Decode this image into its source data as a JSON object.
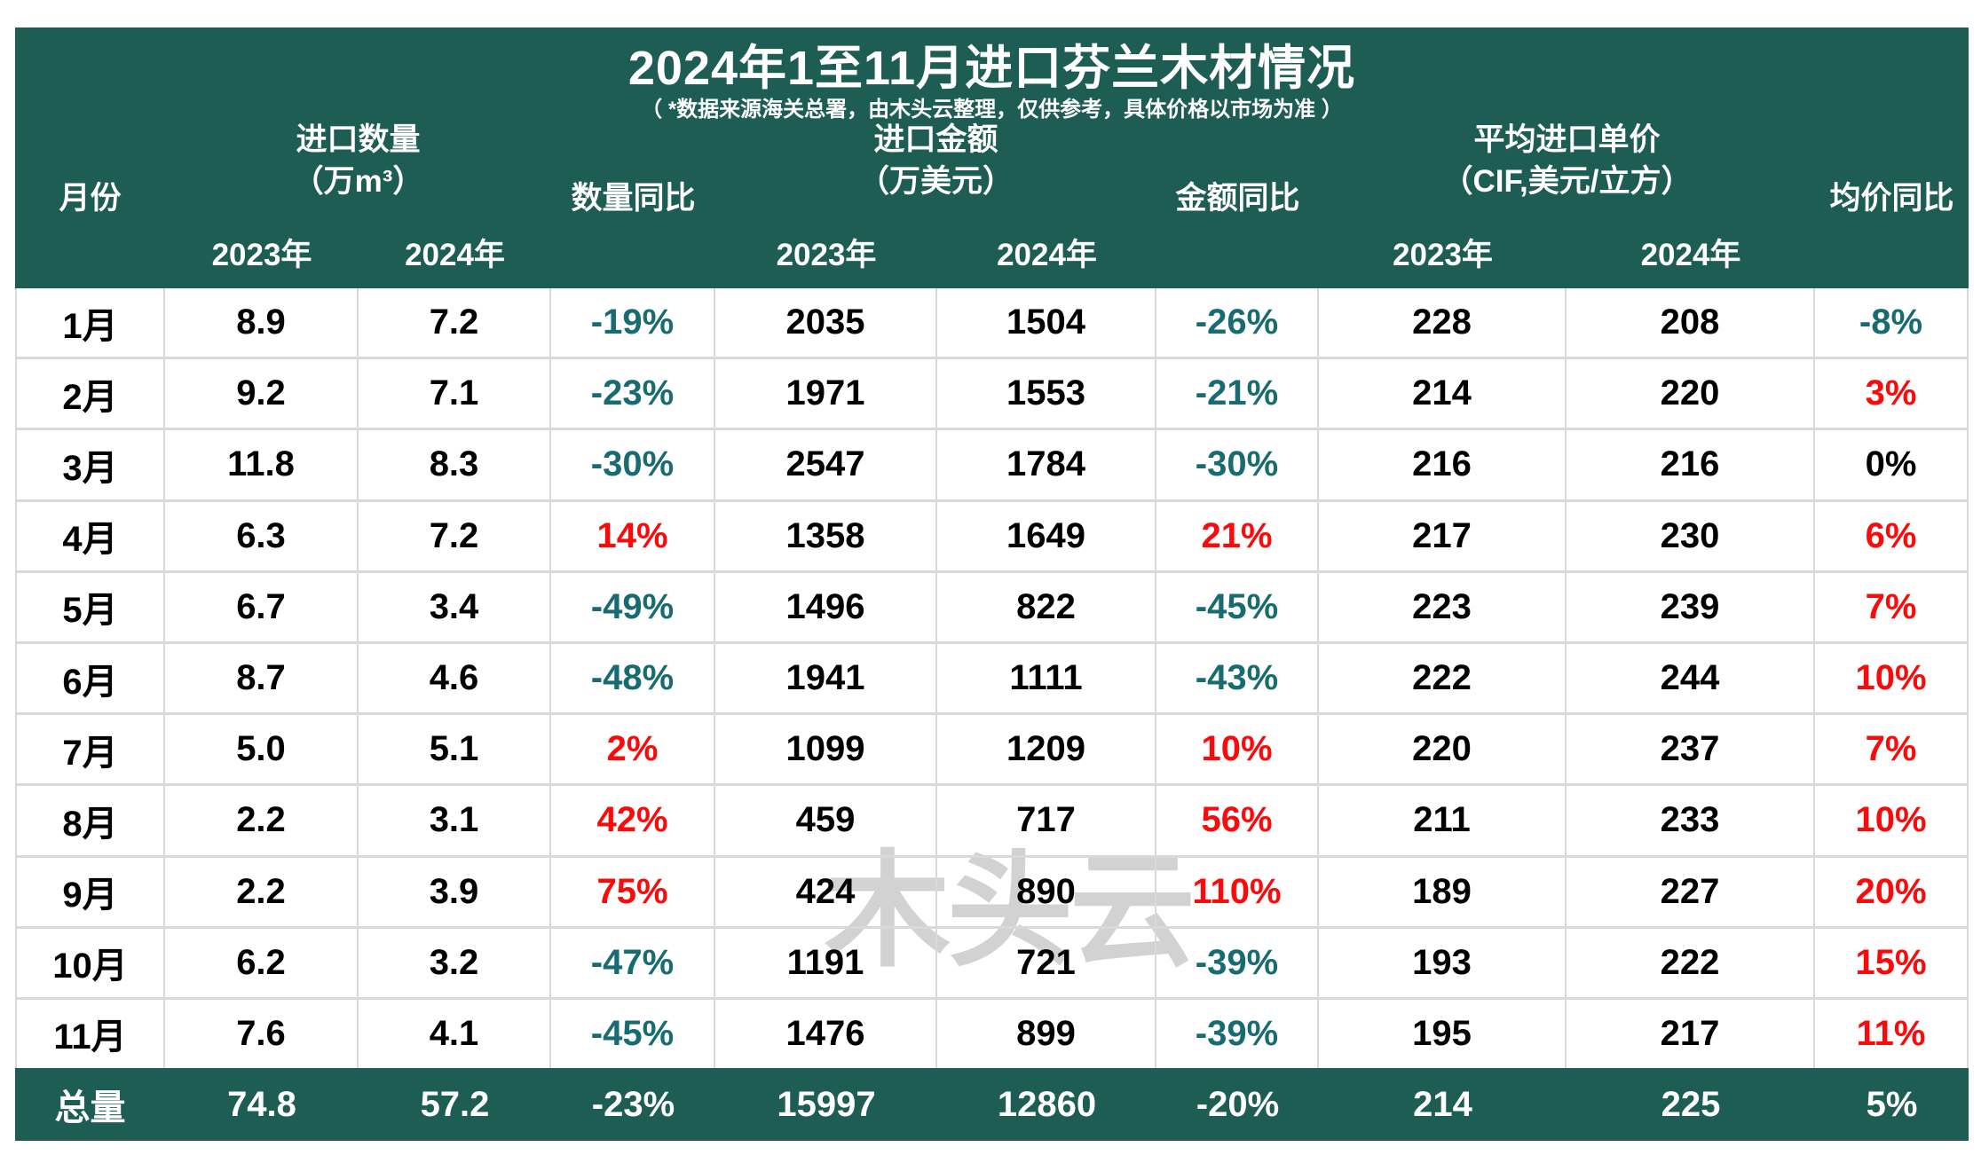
{
  "title": "2024年1至11月进口芬兰木材情况",
  "subtitle": "（ *数据来源海关总署，由木头云整理，仅供参考，具体价格以市场为准 ）",
  "watermark": "木头云",
  "colors": {
    "header_green": "#1d5d53",
    "negative_teal": "#186b70",
    "positive_red": "#fa0a0a",
    "grid_gray": "#d9d9d9",
    "watermark_gray": "#d2d2d2"
  },
  "header": {
    "month": "月份",
    "qty_group": "进口数量",
    "qty_unit": "（万m³）",
    "qty_yoy": "数量同比",
    "amt_group": "进口金额",
    "amt_unit": "（万美元）",
    "amt_yoy": "金额同比",
    "price_group": "平均进口单价",
    "price_unit": "（CIF,美元/立方）",
    "price_yoy": "均价同比",
    "y2023": "2023年",
    "y2024": "2024年"
  },
  "rows": [
    {
      "month": "1月",
      "q23": "8.9",
      "q24": "7.2",
      "qy": "-19%",
      "a23": "2035",
      "a24": "1504",
      "ay": "-26%",
      "p23": "228",
      "p24": "208",
      "py": "-8%"
    },
    {
      "month": "2月",
      "q23": "9.2",
      "q24": "7.1",
      "qy": "-23%",
      "a23": "1971",
      "a24": "1553",
      "ay": "-21%",
      "p23": "214",
      "p24": "220",
      "py": "3%"
    },
    {
      "month": "3月",
      "q23": "11.8",
      "q24": "8.3",
      "qy": "-30%",
      "a23": "2547",
      "a24": "1784",
      "ay": "-30%",
      "p23": "216",
      "p24": "216",
      "py": "0%"
    },
    {
      "month": "4月",
      "q23": "6.3",
      "q24": "7.2",
      "qy": "14%",
      "a23": "1358",
      "a24": "1649",
      "ay": "21%",
      "p23": "217",
      "p24": "230",
      "py": "6%"
    },
    {
      "month": "5月",
      "q23": "6.7",
      "q24": "3.4",
      "qy": "-49%",
      "a23": "1496",
      "a24": "822",
      "ay": "-45%",
      "p23": "223",
      "p24": "239",
      "py": "7%"
    },
    {
      "month": "6月",
      "q23": "8.7",
      "q24": "4.6",
      "qy": "-48%",
      "a23": "1941",
      "a24": "1111",
      "ay": "-43%",
      "p23": "222",
      "p24": "244",
      "py": "10%"
    },
    {
      "month": "7月",
      "q23": "5.0",
      "q24": "5.1",
      "qy": "2%",
      "a23": "1099",
      "a24": "1209",
      "ay": "10%",
      "p23": "220",
      "p24": "237",
      "py": "7%"
    },
    {
      "month": "8月",
      "q23": "2.2",
      "q24": "3.1",
      "qy": "42%",
      "a23": "459",
      "a24": "717",
      "ay": "56%",
      "p23": "211",
      "p24": "233",
      "py": "10%"
    },
    {
      "month": "9月",
      "q23": "2.2",
      "q24": "3.9",
      "qy": "75%",
      "a23": "424",
      "a24": "890",
      "ay": "110%",
      "p23": "189",
      "p24": "227",
      "py": "20%"
    },
    {
      "month": "10月",
      "q23": "6.2",
      "q24": "3.2",
      "qy": "-47%",
      "a23": "1191",
      "a24": "721",
      "ay": "-39%",
      "p23": "193",
      "p24": "222",
      "py": "15%"
    },
    {
      "month": "11月",
      "q23": "7.6",
      "q24": "4.1",
      "qy": "-45%",
      "a23": "1476",
      "a24": "899",
      "ay": "-39%",
      "p23": "195",
      "p24": "217",
      "py": "11%"
    }
  ],
  "total": {
    "month": "总量",
    "q23": "74.8",
    "q24": "57.2",
    "qy": "-23%",
    "a23": "15997",
    "a24": "12860",
    "ay": "-20%",
    "p23": "214",
    "p24": "225",
    "py": "5%"
  }
}
